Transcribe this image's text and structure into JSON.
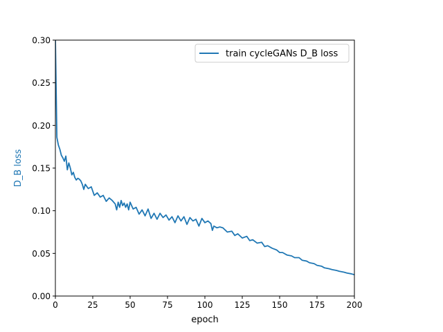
{
  "chart_data": {
    "type": "line",
    "xlabel": "epoch",
    "ylabel": "D_B loss",
    "xlim": [
      0,
      200
    ],
    "ylim": [
      0,
      0.3
    ],
    "xticks": [
      0,
      25,
      50,
      75,
      100,
      125,
      150,
      175,
      200
    ],
    "yticks": [
      0.0,
      0.05,
      0.1,
      0.15,
      0.2,
      0.25,
      0.3
    ],
    "grid": false,
    "legend_position": "top-right",
    "colors": {
      "line": "#1f77b4",
      "ylabel": "#1f77b4",
      "axis": "#000000"
    },
    "series": [
      {
        "name": "train cycleGANs D_B loss",
        "x": [
          0,
          1,
          2,
          3,
          4,
          5,
          6,
          7,
          8,
          9,
          10,
          11,
          12,
          13,
          14,
          15,
          16,
          17,
          18,
          19,
          20,
          22,
          24,
          26,
          28,
          30,
          32,
          34,
          36,
          38,
          40,
          41,
          42,
          43,
          44,
          45,
          46,
          47,
          48,
          49,
          50,
          52,
          54,
          56,
          58,
          60,
          62,
          64,
          66,
          68,
          70,
          72,
          74,
          76,
          78,
          80,
          82,
          84,
          86,
          88,
          90,
          92,
          94,
          96,
          98,
          100,
          102,
          104,
          105,
          106,
          108,
          110,
          112,
          115,
          118,
          120,
          122,
          125,
          128,
          130,
          132,
          135,
          138,
          140,
          142,
          145,
          148,
          150,
          152,
          155,
          158,
          160,
          163,
          165,
          168,
          170,
          173,
          175,
          178,
          180,
          183,
          185,
          188,
          190,
          193,
          195,
          198,
          200
        ],
        "y": [
          0.302,
          0.186,
          0.177,
          0.172,
          0.165,
          0.162,
          0.158,
          0.164,
          0.148,
          0.156,
          0.15,
          0.142,
          0.145,
          0.139,
          0.136,
          0.138,
          0.137,
          0.135,
          0.131,
          0.125,
          0.131,
          0.126,
          0.128,
          0.118,
          0.121,
          0.116,
          0.118,
          0.111,
          0.115,
          0.112,
          0.108,
          0.101,
          0.11,
          0.104,
          0.112,
          0.106,
          0.109,
          0.104,
          0.108,
          0.101,
          0.11,
          0.102,
          0.104,
          0.096,
          0.101,
          0.094,
          0.102,
          0.091,
          0.097,
          0.09,
          0.097,
          0.092,
          0.095,
          0.089,
          0.093,
          0.086,
          0.094,
          0.088,
          0.093,
          0.084,
          0.092,
          0.088,
          0.09,
          0.082,
          0.091,
          0.086,
          0.088,
          0.085,
          0.077,
          0.082,
          0.08,
          0.081,
          0.08,
          0.075,
          0.076,
          0.071,
          0.073,
          0.068,
          0.07,
          0.065,
          0.066,
          0.062,
          0.063,
          0.058,
          0.059,
          0.056,
          0.054,
          0.051,
          0.051,
          0.048,
          0.047,
          0.045,
          0.045,
          0.042,
          0.041,
          0.039,
          0.038,
          0.036,
          0.035,
          0.033,
          0.032,
          0.031,
          0.03,
          0.029,
          0.028,
          0.027,
          0.026,
          0.025
        ]
      }
    ]
  }
}
